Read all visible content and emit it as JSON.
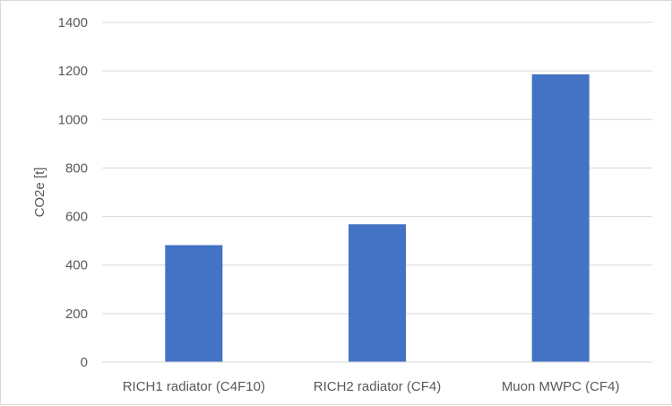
{
  "chart_data": {
    "type": "bar",
    "title": "",
    "xlabel": "",
    "ylabel": "CO2e  [t]",
    "categories": [
      "RICH1 radiator (C4F10)",
      "RICH2 radiator (CF4)",
      "Muon MWPC (CF4)"
    ],
    "values": [
      482,
      568,
      1186
    ],
    "ylim": [
      0,
      1400
    ],
    "yticks": [
      0,
      200,
      400,
      600,
      800,
      1000,
      1200,
      1400
    ],
    "grid": true,
    "legend": "none",
    "bar_color": "#4472c4",
    "grid_color": "#d9d9d9"
  }
}
